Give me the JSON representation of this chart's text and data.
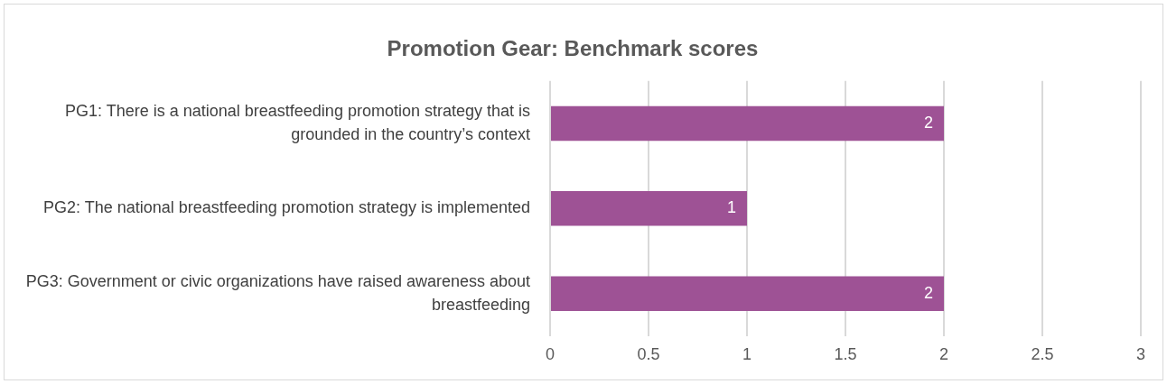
{
  "chart_data": {
    "type": "bar",
    "orientation": "horizontal",
    "title": "Promotion Gear: Benchmark scores",
    "categories": [
      "PG1: There is a national breastfeeding promotion strategy that is grounded in the country’s context",
      "PG2: The national breastfeeding promotion strategy is implemented",
      "PG3: Government or civic organizations have raised awareness about breastfeeding"
    ],
    "values": [
      2,
      1,
      2
    ],
    "color": "#9e5295",
    "data_labels": true,
    "xlim": [
      0,
      3
    ],
    "xticks": [
      0,
      0.5,
      1,
      1.5,
      2,
      2.5,
      3
    ],
    "grid": "x",
    "legend": false
  }
}
